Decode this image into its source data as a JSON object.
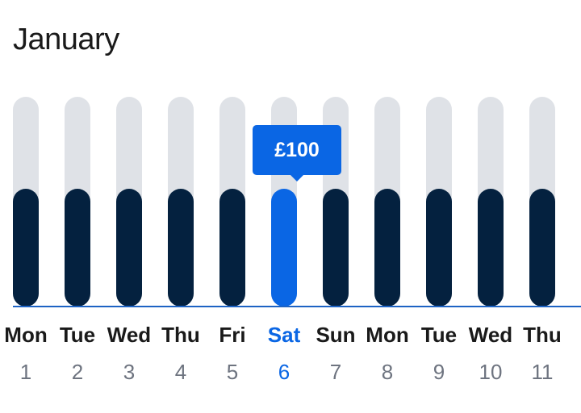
{
  "month": "January",
  "selected_index": 5,
  "tooltip_price": "£100",
  "colors": {
    "bar_default": "#04213f",
    "bar_selected": "#0a66e4",
    "track": "#dfe2e7",
    "accent": "#0a66e4"
  },
  "days": [
    {
      "weekday": "Mon",
      "date": "1",
      "level": 0.56
    },
    {
      "weekday": "Tue",
      "date": "2",
      "level": 0.56
    },
    {
      "weekday": "Wed",
      "date": "3",
      "level": 0.56
    },
    {
      "weekday": "Thu",
      "date": "4",
      "level": 0.56
    },
    {
      "weekday": "Fri",
      "date": "5",
      "level": 0.56
    },
    {
      "weekday": "Sat",
      "date": "6",
      "level": 0.56
    },
    {
      "weekday": "Sun",
      "date": "7",
      "level": 0.56
    },
    {
      "weekday": "Mon",
      "date": "8",
      "level": 0.56
    },
    {
      "weekday": "Tue",
      "date": "9",
      "level": 0.56
    },
    {
      "weekday": "Wed",
      "date": "10",
      "level": 0.56
    },
    {
      "weekday": "Thu",
      "date": "11",
      "level": 0.56
    }
  ]
}
